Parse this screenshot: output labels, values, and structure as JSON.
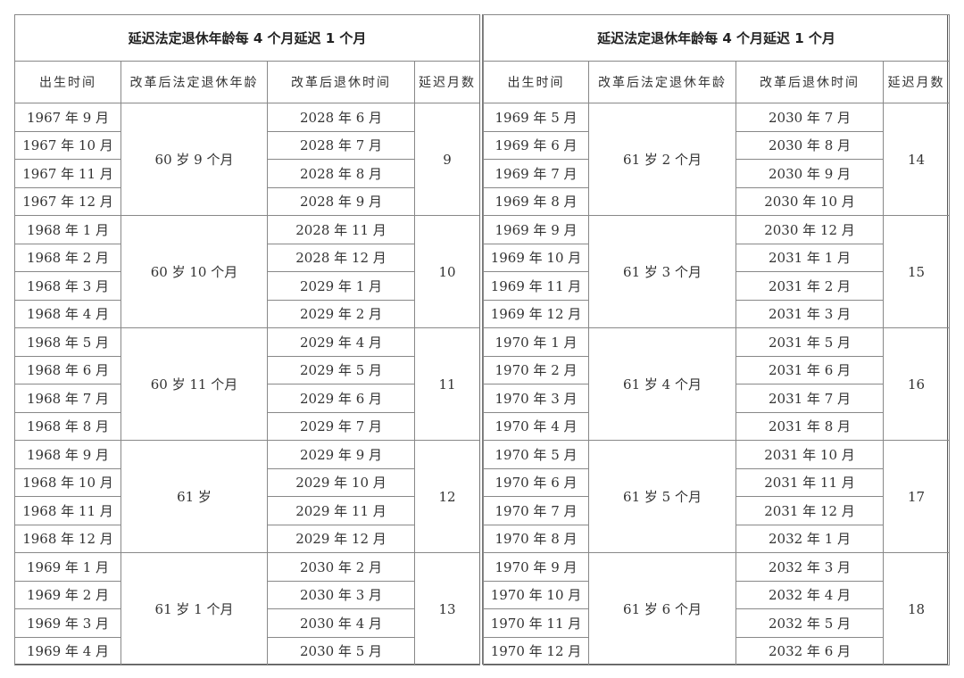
{
  "headers": {
    "title": "延迟法定退休年龄每 4 个月延迟 1 个月",
    "columns": [
      "出生时间",
      "改革后法定退休年龄",
      "改革后退休时间",
      "延迟月数"
    ]
  },
  "left": {
    "groups": [
      {
        "age": "60 岁 9 个月",
        "delay": "9",
        "births": [
          "1967 年 9 月",
          "1967 年 10 月",
          "1967 年 11 月",
          "1967 年 12 月"
        ],
        "retire": [
          "2028 年 6 月",
          "2028 年 7 月",
          "2028 年 8 月",
          "2028 年 9 月"
        ]
      },
      {
        "age": "60 岁 10 个月",
        "delay": "10",
        "births": [
          "1968 年 1 月",
          "1968 年 2 月",
          "1968 年 3 月",
          "1968 年 4 月"
        ],
        "retire": [
          "2028 年 11 月",
          "2028 年 12 月",
          "2029 年 1 月",
          "2029 年 2 月"
        ]
      },
      {
        "age": "60 岁 11 个月",
        "delay": "11",
        "births": [
          "1968 年 5 月",
          "1968 年 6 月",
          "1968 年 7 月",
          "1968 年 8 月"
        ],
        "retire": [
          "2029 年 4 月",
          "2029 年 5 月",
          "2029 年 6 月",
          "2029 年 7 月"
        ]
      },
      {
        "age": "61 岁",
        "delay": "12",
        "births": [
          "1968 年 9 月",
          "1968 年 10 月",
          "1968 年 11 月",
          "1968 年 12 月"
        ],
        "retire": [
          "2029 年 9 月",
          "2029 年 10 月",
          "2029 年 11 月",
          "2029 年 12 月"
        ]
      },
      {
        "age": "61 岁 1 个月",
        "delay": "13",
        "births": [
          "1969 年 1 月",
          "1969 年 2 月",
          "1969 年 3 月",
          "1969 年 4 月"
        ],
        "retire": [
          "2030 年 2 月",
          "2030 年 3 月",
          "2030 年 4 月",
          "2030 年 5 月"
        ]
      }
    ]
  },
  "right": {
    "groups": [
      {
        "age": "61 岁 2 个月",
        "delay": "14",
        "births": [
          "1969 年 5 月",
          "1969 年 6 月",
          "1969 年 7 月",
          "1969 年 8 月"
        ],
        "retire": [
          "2030 年 7 月",
          "2030 年 8 月",
          "2030 年 9 月",
          "2030 年 10 月"
        ]
      },
      {
        "age": "61 岁 3 个月",
        "delay": "15",
        "births": [
          "1969 年 9 月",
          "1969 年 10 月",
          "1969 年 11 月",
          "1969 年 12 月"
        ],
        "retire": [
          "2030 年 12 月",
          "2031 年 1 月",
          "2031 年 2 月",
          "2031 年 3 月"
        ]
      },
      {
        "age": "61 岁 4 个月",
        "delay": "16",
        "births": [
          "1970 年 1 月",
          "1970 年 2 月",
          "1970 年 3 月",
          "1970 年 4 月"
        ],
        "retire": [
          "2031 年 5 月",
          "2031 年 6 月",
          "2031 年 7 月",
          "2031 年 8 月"
        ]
      },
      {
        "age": "61 岁 5 个月",
        "delay": "17",
        "births": [
          "1970 年 5 月",
          "1970 年 6 月",
          "1970 年 7 月",
          "1970 年 8 月"
        ],
        "retire": [
          "2031 年 10 月",
          "2031 年 11 月",
          "2031 年 12 月",
          "2032 年 1 月"
        ]
      },
      {
        "age": "61 岁 6 个月",
        "delay": "18",
        "births": [
          "1970 年 9 月",
          "1970 年 10 月",
          "1970 年 11 月",
          "1970 年 12 月"
        ],
        "retire": [
          "2032 年 3 月",
          "2032 年 4 月",
          "2032 年 5 月",
          "2032 年 6 月"
        ]
      }
    ]
  }
}
